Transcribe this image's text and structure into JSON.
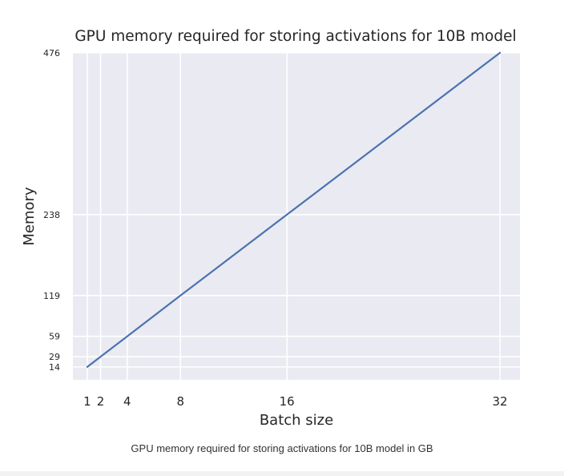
{
  "chart_data": {
    "type": "line",
    "title": "GPU memory required for storing activations for 10B model",
    "xlabel": "Batch size",
    "ylabel": "Memory",
    "x_ticks": [
      1,
      2,
      4,
      8,
      16,
      32
    ],
    "y_ticks": [
      14,
      29,
      59,
      119,
      238,
      476
    ],
    "xlim": [
      -0.08,
      33.5
    ],
    "ylim": [
      -5,
      477
    ],
    "grid": true,
    "series": [
      {
        "x": [
          1,
          2,
          4,
          8,
          16,
          32
        ],
        "y": [
          14,
          29,
          59,
          119,
          238,
          476
        ]
      }
    ],
    "colors": {
      "line": "#4c72b0",
      "plot_bg": "#eaeaf2",
      "grid": "#ffffff"
    }
  },
  "caption": "GPU memory required for storing activations for 10B model in GB"
}
